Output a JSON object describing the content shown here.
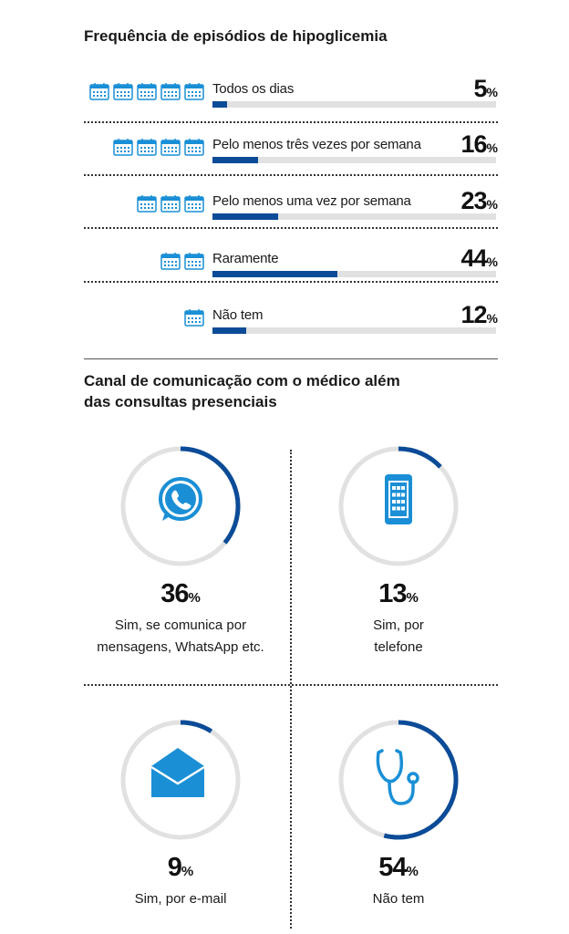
{
  "section1": {
    "title": "Frequência de episódios de hipoglicemia"
  },
  "section2": {
    "title": "Canal de comunicação com o médico além das consultas presenciais"
  },
  "colors": {
    "accent": "#0b4b97",
    "track": "#e1e1e1",
    "icon": "#1a8fd6"
  },
  "chart_data": [
    {
      "type": "bar",
      "title": "Frequência de episódios de hipoglicemia",
      "unit": "%",
      "rows": [
        {
          "label": "Todos os dias",
          "value": 5,
          "value_text": "5",
          "icon": "calendar-icon",
          "icon_count": 5
        },
        {
          "label": "Pelo menos três vezes por semana",
          "value": 16,
          "value_text": "16",
          "icon": "calendar-icon",
          "icon_count": 4
        },
        {
          "label": "Pelo menos uma vez por semana",
          "value": 23,
          "value_text": "23",
          "icon": "calendar-icon",
          "icon_count": 3
        },
        {
          "label": "Raramente",
          "value": 44,
          "value_text": "44",
          "icon": "calendar-icon",
          "icon_count": 2
        },
        {
          "label": "Não tem",
          "value": 12,
          "value_text": "12",
          "icon": "calendar-icon",
          "icon_count": 1
        }
      ]
    },
    {
      "type": "pie",
      "title": "Canal de comunicação com o médico além das consultas presenciais",
      "unit": "%",
      "items": [
        {
          "label": "Sim, se comunica por mensagens, WhatsApp etc.",
          "value": 36,
          "value_text": "36",
          "icon": "whatsapp-icon"
        },
        {
          "label": "Sim, por telefone",
          "value": 13,
          "value_text": "13",
          "icon": "phone-icon"
        },
        {
          "label": "Sim, por e-mail",
          "value": 9,
          "value_text": "9",
          "icon": "envelope-icon"
        },
        {
          "label": "Não tem",
          "value": 54,
          "value_text": "54",
          "icon": "stethoscope-icon"
        }
      ]
    }
  ]
}
